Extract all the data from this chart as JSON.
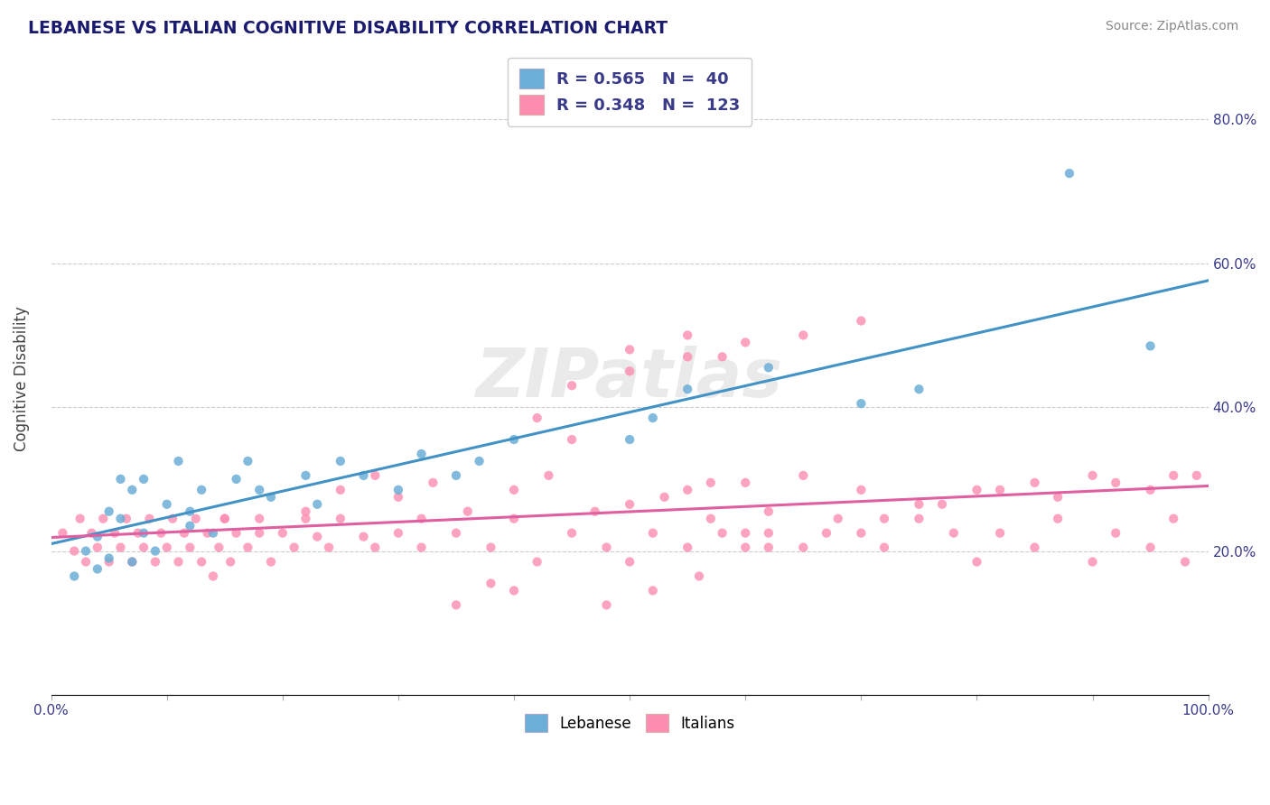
{
  "title": "LEBANESE VS ITALIAN COGNITIVE DISABILITY CORRELATION CHART",
  "source": "Source: ZipAtlas.com",
  "ylabel": "Cognitive Disability",
  "legend_labels": [
    "Lebanese",
    "Italians"
  ],
  "legend_R": [
    0.565,
    0.348
  ],
  "legend_N": [
    40,
    123
  ],
  "blue_color": "#6baed6",
  "pink_color": "#fc8db0",
  "blue_line_color": "#4292c6",
  "pink_line_color": "#e05fa0",
  "watermark": "ZIPatlas",
  "blue_scatter_x": [
    0.02,
    0.03,
    0.04,
    0.04,
    0.05,
    0.05,
    0.06,
    0.06,
    0.07,
    0.07,
    0.08,
    0.08,
    0.09,
    0.1,
    0.11,
    0.12,
    0.12,
    0.13,
    0.14,
    0.16,
    0.17,
    0.18,
    0.19,
    0.22,
    0.23,
    0.25,
    0.27,
    0.3,
    0.32,
    0.35,
    0.37,
    0.4,
    0.5,
    0.52,
    0.55,
    0.62,
    0.7,
    0.75,
    0.88,
    0.95
  ],
  "blue_scatter_y": [
    0.165,
    0.2,
    0.22,
    0.175,
    0.19,
    0.255,
    0.3,
    0.245,
    0.285,
    0.185,
    0.3,
    0.225,
    0.2,
    0.265,
    0.325,
    0.255,
    0.235,
    0.285,
    0.225,
    0.3,
    0.325,
    0.285,
    0.275,
    0.305,
    0.265,
    0.325,
    0.305,
    0.285,
    0.335,
    0.305,
    0.325,
    0.355,
    0.355,
    0.385,
    0.425,
    0.455,
    0.405,
    0.425,
    0.725,
    0.485
  ],
  "pink_scatter_x": [
    0.01,
    0.02,
    0.025,
    0.03,
    0.035,
    0.04,
    0.045,
    0.05,
    0.055,
    0.06,
    0.065,
    0.07,
    0.075,
    0.08,
    0.085,
    0.09,
    0.095,
    0.1,
    0.105,
    0.11,
    0.115,
    0.12,
    0.125,
    0.13,
    0.135,
    0.14,
    0.145,
    0.15,
    0.155,
    0.16,
    0.17,
    0.18,
    0.19,
    0.2,
    0.21,
    0.22,
    0.23,
    0.24,
    0.25,
    0.27,
    0.28,
    0.3,
    0.32,
    0.35,
    0.38,
    0.4,
    0.42,
    0.45,
    0.48,
    0.5,
    0.52,
    0.55,
    0.57,
    0.58,
    0.6,
    0.62,
    0.65,
    0.68,
    0.7,
    0.72,
    0.75,
    0.78,
    0.8,
    0.82,
    0.85,
    0.87,
    0.9,
    0.92,
    0.95,
    0.97,
    0.98,
    0.5,
    0.55,
    0.58,
    0.42,
    0.45,
    0.35,
    0.38,
    0.4,
    0.15,
    0.18,
    0.22,
    0.25,
    0.28,
    0.32,
    0.3,
    0.33,
    0.36,
    0.4,
    0.43,
    0.47,
    0.53,
    0.57,
    0.62,
    0.67,
    0.72,
    0.77,
    0.82,
    0.87,
    0.92,
    0.97,
    0.5,
    0.55,
    0.6,
    0.65,
    0.7,
    0.75,
    0.8,
    0.85,
    0.9,
    0.95,
    0.99,
    0.6,
    0.62,
    0.48,
    0.52,
    0.56,
    0.45,
    0.5,
    0.55,
    0.6,
    0.65,
    0.7
  ],
  "pink_scatter_y": [
    0.225,
    0.2,
    0.245,
    0.185,
    0.225,
    0.205,
    0.245,
    0.185,
    0.225,
    0.205,
    0.245,
    0.185,
    0.225,
    0.205,
    0.245,
    0.185,
    0.225,
    0.205,
    0.245,
    0.185,
    0.225,
    0.205,
    0.245,
    0.185,
    0.225,
    0.165,
    0.205,
    0.245,
    0.185,
    0.225,
    0.205,
    0.245,
    0.185,
    0.225,
    0.205,
    0.245,
    0.22,
    0.205,
    0.245,
    0.22,
    0.205,
    0.225,
    0.205,
    0.225,
    0.205,
    0.245,
    0.185,
    0.225,
    0.205,
    0.185,
    0.225,
    0.205,
    0.245,
    0.225,
    0.205,
    0.225,
    0.205,
    0.245,
    0.225,
    0.205,
    0.245,
    0.225,
    0.185,
    0.225,
    0.205,
    0.245,
    0.185,
    0.225,
    0.205,
    0.245,
    0.185,
    0.48,
    0.5,
    0.47,
    0.385,
    0.355,
    0.125,
    0.155,
    0.145,
    0.245,
    0.225,
    0.255,
    0.285,
    0.305,
    0.245,
    0.275,
    0.295,
    0.255,
    0.285,
    0.305,
    0.255,
    0.275,
    0.295,
    0.255,
    0.225,
    0.245,
    0.265,
    0.285,
    0.275,
    0.295,
    0.305,
    0.265,
    0.285,
    0.295,
    0.305,
    0.285,
    0.265,
    0.285,
    0.295,
    0.305,
    0.285,
    0.305,
    0.225,
    0.205,
    0.125,
    0.145,
    0.165,
    0.43,
    0.45,
    0.47,
    0.49,
    0.5,
    0.52
  ]
}
